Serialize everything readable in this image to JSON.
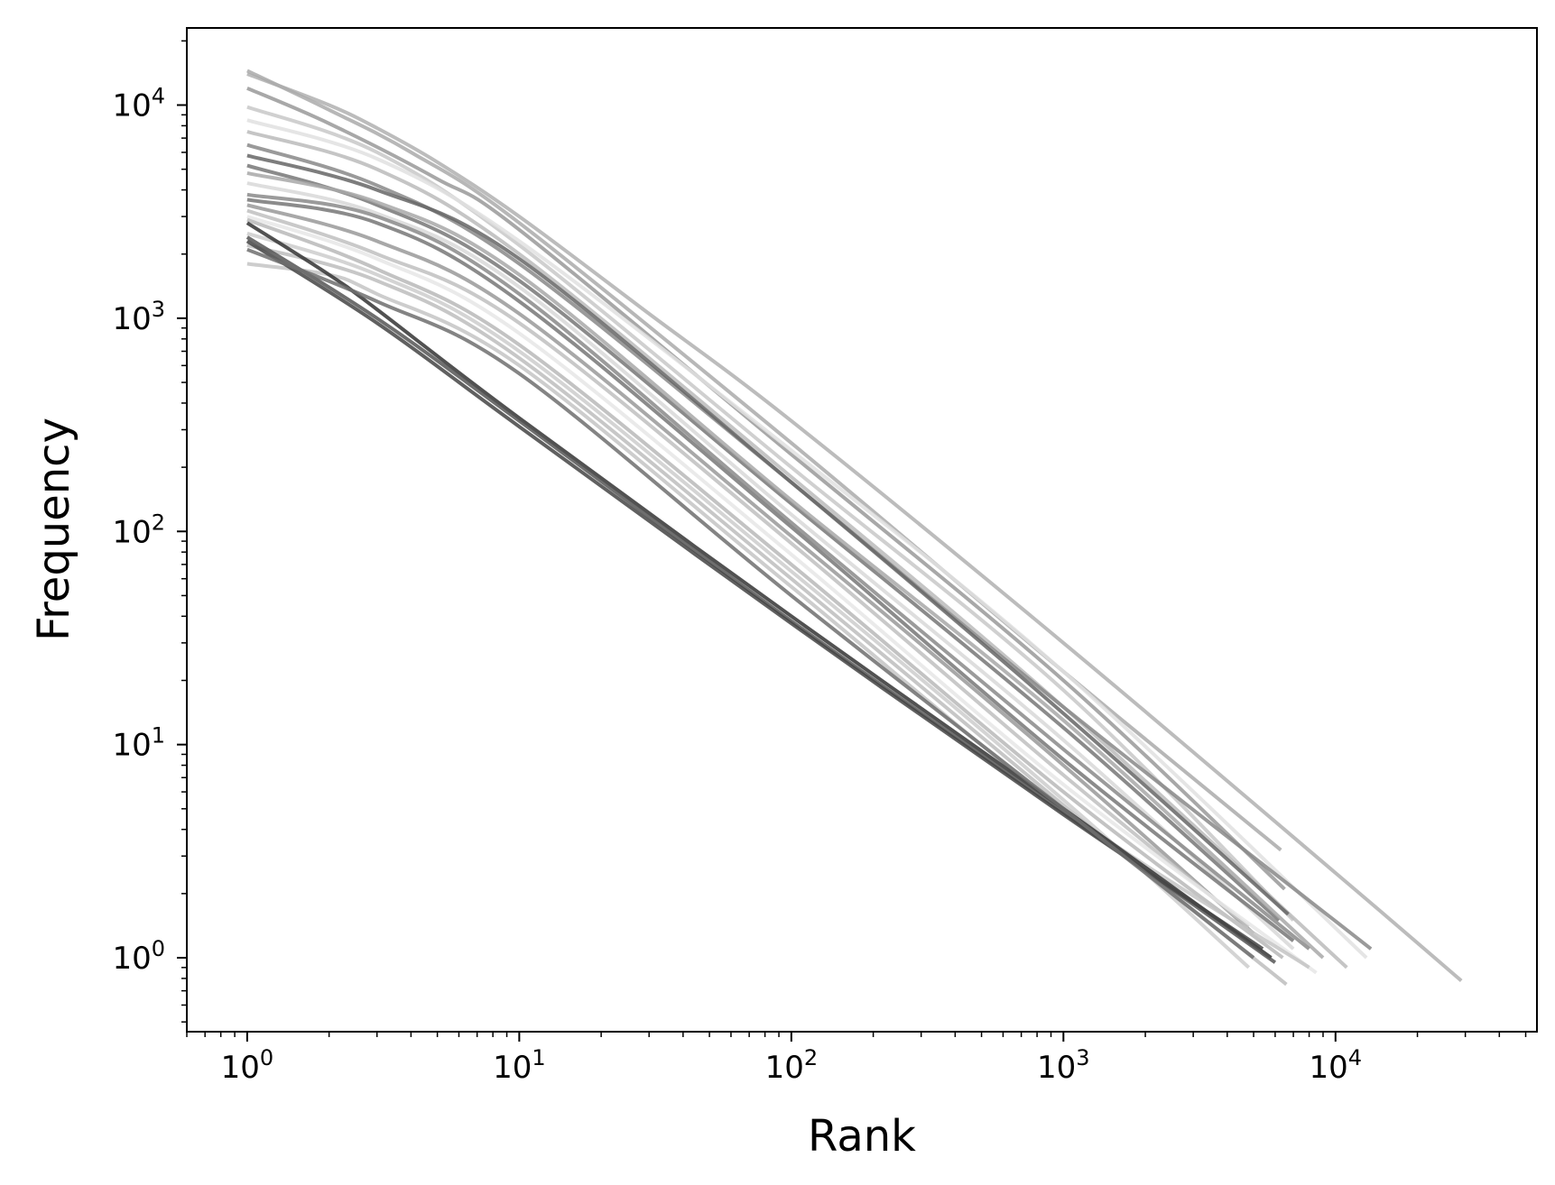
{
  "chart_data": {
    "type": "line",
    "xlabel": "Rank",
    "ylabel": "Frequency",
    "xscale": "log",
    "yscale": "log",
    "xlim": [
      0.6,
      55000
    ],
    "ylim": [
      0.45,
      23000
    ],
    "grid": false,
    "legend": "none",
    "x_ticks": [
      {
        "base": "10",
        "exp": "0",
        "value": 1
      },
      {
        "base": "10",
        "exp": "1",
        "value": 10
      },
      {
        "base": "10",
        "exp": "2",
        "value": 100
      },
      {
        "base": "10",
        "exp": "3",
        "value": 1000
      },
      {
        "base": "10",
        "exp": "4",
        "value": 10000
      }
    ],
    "y_ticks": [
      {
        "base": "10",
        "exp": "0",
        "value": 1
      },
      {
        "base": "10",
        "exp": "1",
        "value": 10
      },
      {
        "base": "10",
        "exp": "2",
        "value": 100
      },
      {
        "base": "10",
        "exp": "3",
        "value": 1000
      },
      {
        "base": "10",
        "exp": "4",
        "value": 10000
      }
    ],
    "series": [
      {
        "color": "#b0b0b0",
        "points": [
          [
            1,
            14000
          ],
          [
            2,
            10000
          ],
          [
            3,
            7800
          ],
          [
            5,
            5400
          ],
          [
            10,
            3000
          ],
          [
            30,
            1050
          ],
          [
            100,
            330
          ],
          [
            1000,
            30
          ],
          [
            10000,
            2.5
          ],
          [
            29000,
            0.78
          ]
        ]
      },
      {
        "color": "#aaaaaa",
        "points": [
          [
            1,
            14500
          ],
          [
            2,
            9500
          ],
          [
            4,
            6000
          ],
          [
            10,
            2800
          ],
          [
            100,
            260
          ],
          [
            1000,
            22
          ],
          [
            6300,
            3.2
          ]
        ]
      },
      {
        "color": "#999999",
        "points": [
          [
            1,
            12000
          ],
          [
            2,
            8200
          ],
          [
            5,
            4500
          ],
          [
            10,
            2600
          ],
          [
            100,
            230
          ],
          [
            1000,
            20
          ],
          [
            6500,
            2.1
          ]
        ]
      },
      {
        "color": "#c8c8c8",
        "points": [
          [
            1,
            9800
          ],
          [
            3,
            6000
          ],
          [
            10,
            2200
          ],
          [
            100,
            200
          ],
          [
            1000,
            18
          ],
          [
            7000,
            1.5
          ]
        ]
      },
      {
        "color": "#e0e0e0",
        "points": [
          [
            1,
            8500
          ],
          [
            3,
            5600
          ],
          [
            10,
            2300
          ],
          [
            100,
            240
          ],
          [
            1000,
            22
          ],
          [
            13000,
            1.0
          ]
        ]
      },
      {
        "color": "#bbbbbb",
        "points": [
          [
            1,
            7500
          ],
          [
            3,
            5000
          ],
          [
            10,
            2000
          ],
          [
            100,
            180
          ],
          [
            1000,
            15
          ],
          [
            11000,
            0.9
          ]
        ]
      },
      {
        "color": "#888888",
        "points": [
          [
            1,
            6500
          ],
          [
            3,
            4200
          ],
          [
            10,
            1800
          ],
          [
            100,
            170
          ],
          [
            1000,
            15
          ],
          [
            13500,
            1.1
          ]
        ]
      },
      {
        "color": "#666666",
        "points": [
          [
            1,
            5800
          ],
          [
            3,
            4000
          ],
          [
            10,
            1900
          ],
          [
            100,
            170
          ],
          [
            1000,
            14
          ],
          [
            6700,
            1.6
          ]
        ]
      },
      {
        "color": "#777777",
        "points": [
          [
            1,
            5200
          ],
          [
            3,
            3400
          ],
          [
            10,
            1500
          ],
          [
            100,
            135
          ],
          [
            1000,
            12
          ],
          [
            6200,
            1.5
          ]
        ]
      },
      {
        "color": "#a8a8a8",
        "points": [
          [
            1,
            4800
          ],
          [
            3,
            3500
          ],
          [
            10,
            1600
          ],
          [
            100,
            140
          ],
          [
            1000,
            13
          ],
          [
            9000,
            1.0
          ]
        ]
      },
      {
        "color": "#d8d8d8",
        "points": [
          [
            1,
            4300
          ],
          [
            3,
            3100
          ],
          [
            10,
            1400
          ],
          [
            100,
            120
          ],
          [
            1000,
            10.5
          ],
          [
            7000,
            1.1
          ]
        ]
      },
      {
        "color": "#8a8a8a",
        "points": [
          [
            1,
            3800
          ],
          [
            3,
            3000
          ],
          [
            10,
            1300
          ],
          [
            100,
            110
          ],
          [
            1000,
            9.5
          ],
          [
            8000,
            1.1
          ]
        ]
      },
      {
        "color": "#777777",
        "points": [
          [
            1,
            3600
          ],
          [
            3,
            2800
          ],
          [
            10,
            1200
          ],
          [
            100,
            105
          ],
          [
            1000,
            8.5
          ],
          [
            7000,
            1.2
          ]
        ]
      },
      {
        "color": "#999999",
        "points": [
          [
            1,
            3400
          ],
          [
            3,
            2300
          ],
          [
            10,
            1050
          ],
          [
            100,
            95
          ],
          [
            1000,
            8
          ],
          [
            5000,
            1.3
          ]
        ]
      },
      {
        "color": "#c0c0c0",
        "points": [
          [
            1,
            3200
          ],
          [
            3,
            2000
          ],
          [
            10,
            950
          ],
          [
            100,
            88
          ],
          [
            1000,
            7.2
          ],
          [
            4800,
            1.4
          ]
        ]
      },
      {
        "color": "#e6e6e6",
        "points": [
          [
            1,
            3000
          ],
          [
            3,
            1900
          ],
          [
            10,
            850
          ],
          [
            100,
            78
          ],
          [
            1000,
            6.5
          ],
          [
            8500,
            0.85
          ]
        ]
      },
      {
        "color": "#b8b8b8",
        "points": [
          [
            1,
            2900
          ],
          [
            3,
            1700
          ],
          [
            10,
            750
          ],
          [
            100,
            70
          ],
          [
            1000,
            6
          ],
          [
            6400,
            1.0
          ]
        ]
      },
      {
        "color": "#cccccc",
        "points": [
          [
            1,
            2500
          ],
          [
            3,
            1600
          ],
          [
            10,
            700
          ],
          [
            100,
            65
          ],
          [
            1000,
            5.5
          ],
          [
            4800,
            0.9
          ]
        ]
      },
      {
        "color": "#bdbdbd",
        "points": [
          [
            1,
            2200
          ],
          [
            3,
            1500
          ],
          [
            10,
            650
          ],
          [
            100,
            60
          ],
          [
            1000,
            5.2
          ],
          [
            6600,
            0.75
          ]
        ]
      },
      {
        "color": "#c4c4c4",
        "points": [
          [
            1,
            1800
          ],
          [
            2,
            1600
          ],
          [
            3,
            1300
          ],
          [
            10,
            600
          ],
          [
            100,
            55
          ],
          [
            1000,
            5
          ],
          [
            8000,
            0.9
          ]
        ]
      },
      {
        "color": "#333333",
        "points": [
          [
            1,
            2800
          ],
          [
            2,
            1600
          ],
          [
            3,
            1100
          ],
          [
            10,
            340
          ],
          [
            100,
            40
          ],
          [
            1000,
            5
          ],
          [
            5800,
            1.0
          ]
        ]
      },
      {
        "color": "#555555",
        "points": [
          [
            1,
            2400
          ],
          [
            3,
            1000
          ],
          [
            10,
            330
          ],
          [
            100,
            38
          ],
          [
            1000,
            4.8
          ],
          [
            6000,
            0.95
          ]
        ]
      },
      {
        "color": "#444444",
        "points": [
          [
            1,
            2300
          ],
          [
            3,
            950
          ],
          [
            10,
            310
          ],
          [
            100,
            37
          ],
          [
            1000,
            4.7
          ],
          [
            5400,
            1.1
          ]
        ]
      },
      {
        "color": "#6e6e6e",
        "points": [
          [
            1,
            2100
          ],
          [
            3,
            1200
          ],
          [
            10,
            550
          ],
          [
            100,
            50
          ],
          [
            1000,
            5
          ],
          [
            5000,
            1.0
          ]
        ]
      }
    ]
  }
}
